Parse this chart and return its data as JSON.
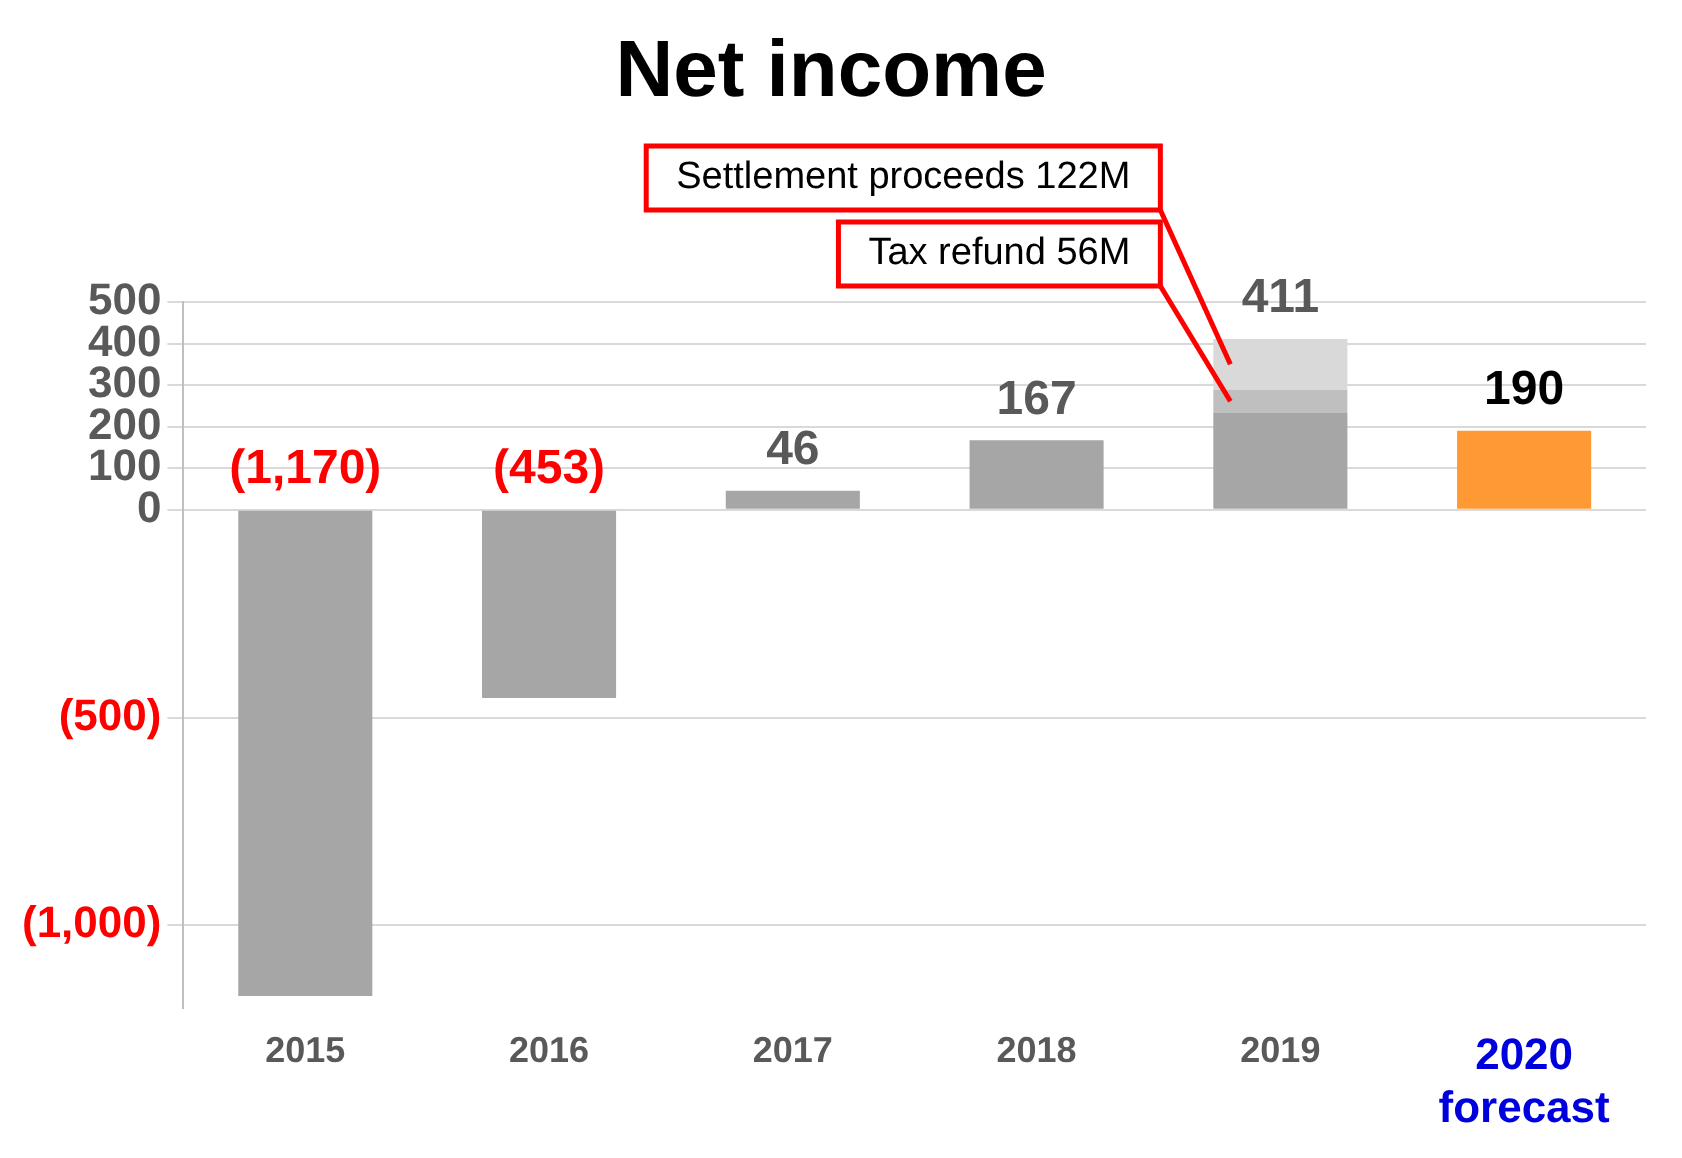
{
  "chart_data": {
    "type": "bar",
    "title": "Net income",
    "stacked": true,
    "categories": [
      "2015",
      "2016",
      "2017",
      "2018",
      "2019",
      "2020\nforecast"
    ],
    "series": [
      {
        "colors": [
          "#a6a6a6",
          "#a6a6a6",
          "#a6a6a6",
          "#a6a6a6",
          "#a6a6a6",
          "#ff9933"
        ],
        "values": [
          -1170,
          -453,
          46,
          167,
          233,
          190
        ]
      },
      {
        "color": "#bfbfbf",
        "values": [
          null,
          null,
          null,
          null,
          56,
          null
        ]
      },
      {
        "color": "#d9d9d9",
        "values": [
          null,
          null,
          null,
          null,
          122,
          null
        ]
      }
    ],
    "totals": [
      "(1,170)",
      "(453)",
      "46",
      "167",
      "411",
      "190"
    ],
    "ylim": [
      -1200,
      500
    ],
    "yticks": [
      {
        "value": -1000,
        "label": "(1,000)"
      },
      {
        "value": -500,
        "label": "(500)"
      },
      0,
      100,
      200,
      300,
      400,
      500
    ],
    "grid": "y",
    "annotations": [
      "Settlement proceeds 122M",
      "Tax refund 56M"
    ]
  }
}
